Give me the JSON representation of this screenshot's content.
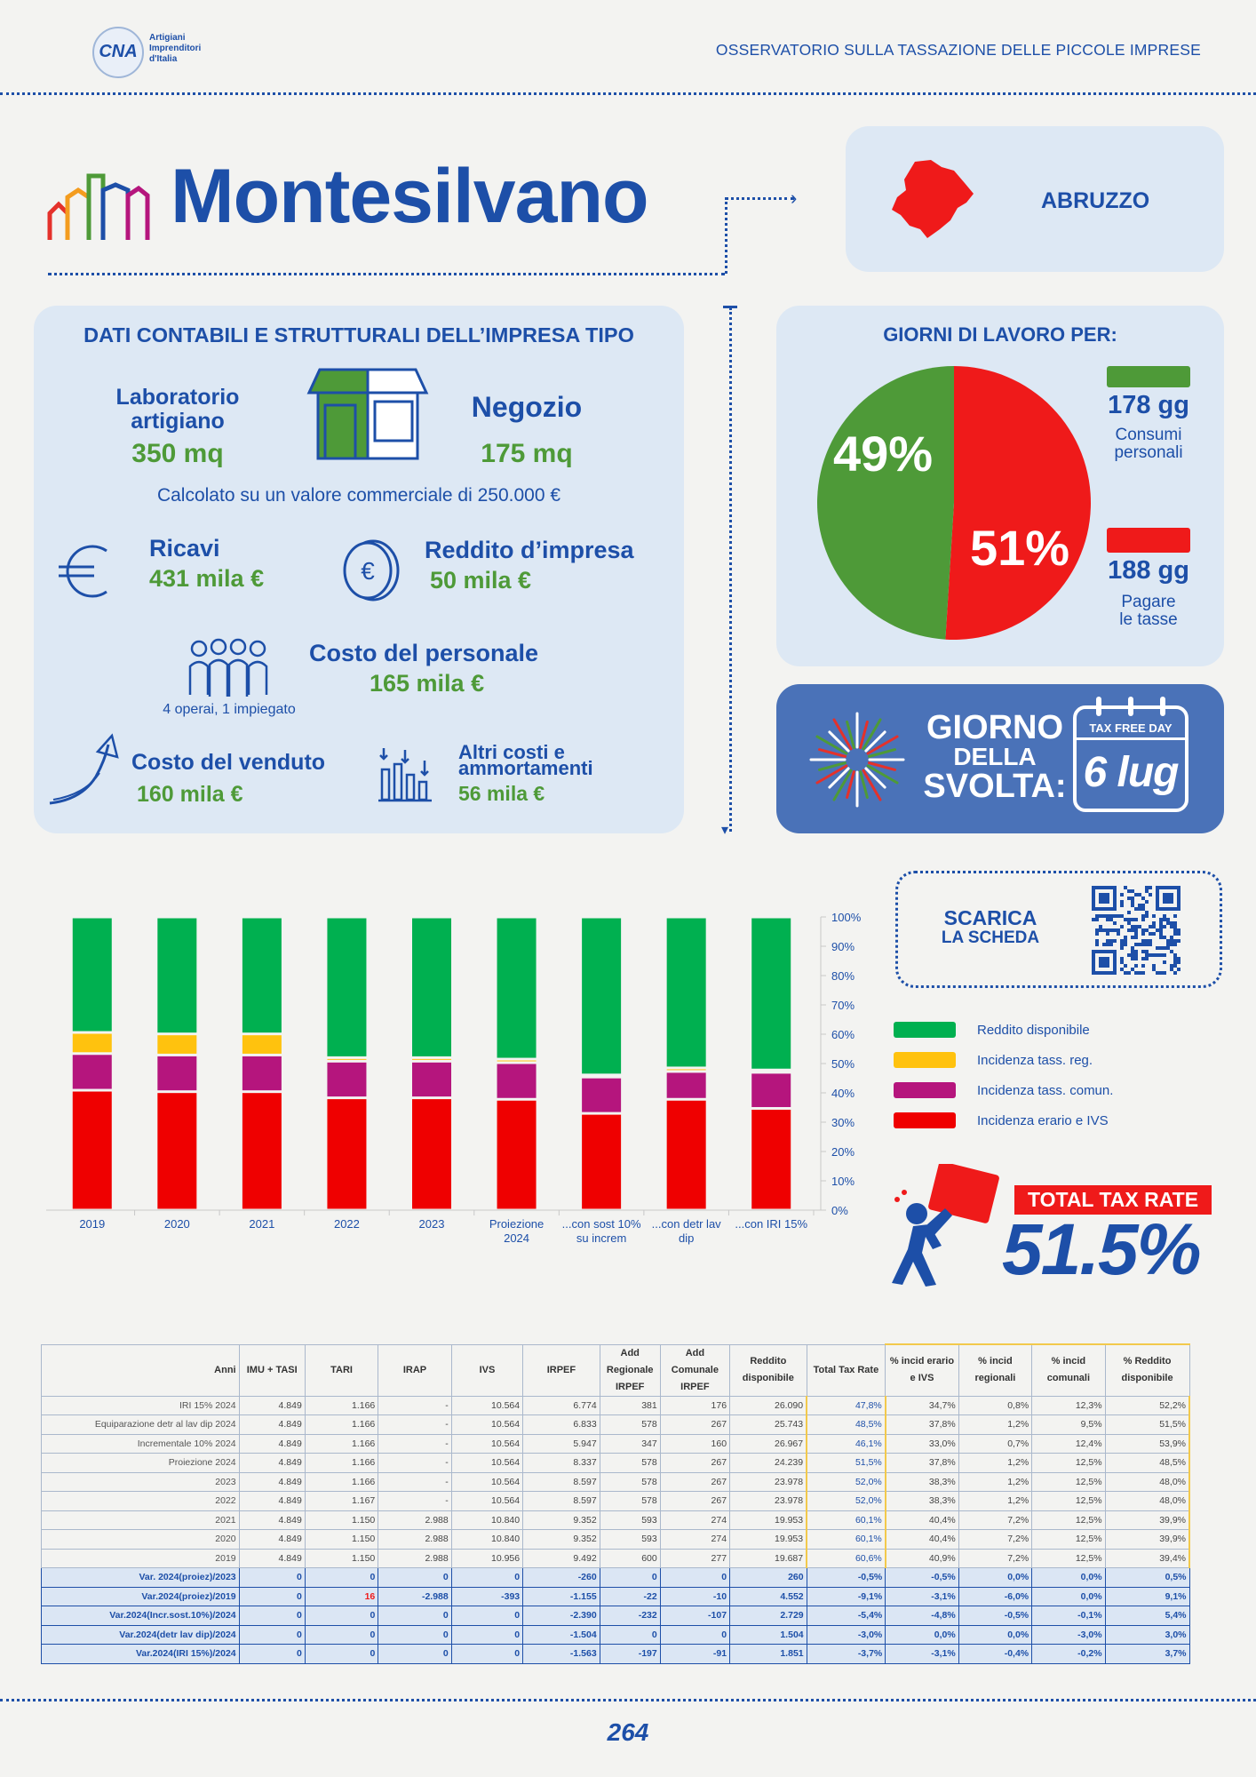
{
  "header": {
    "logo_text": "CNA",
    "logo_sub": [
      "Artigiani",
      "Imprenditori",
      "d'Italia"
    ],
    "title": "OSSERVATORIO SULLA TASSAZIONE DELLE PICCOLE IMPRESE"
  },
  "city": "Montesilvano",
  "region": "ABRUZZO",
  "impresa": {
    "title": "DATI CONTABILI E STRUTTURALI DELL’IMPRESA TIPO",
    "lab_label_1": "Laboratorio",
    "lab_label_2": "artigiano",
    "lab_value": "350 mq",
    "negozio_label": "Negozio",
    "negozio_value": "175 mq",
    "valore_note": "Calcolato su un valore commerciale di 250.000 €",
    "ricavi_label": "Ricavi",
    "ricavi_value": "431 mila €",
    "reddito_label": "Reddito d’impresa",
    "reddito_value": "50 mila €",
    "personale_label": "Costo del personale",
    "personale_value": "165 mila €",
    "personale_note": "4 operai, 1 impiegato",
    "venduto_label": "Costo del venduto",
    "venduto_value": "160 mila €",
    "altri_label_1": "Altri costi e",
    "altri_label_2": "ammortamenti",
    "altri_value": "56 mila €"
  },
  "giorni": {
    "title": "GIORNI DI LAVORO PER:",
    "green_pct": "49%",
    "red_pct": "51%",
    "green_days": "178 gg",
    "green_desc_1": "Consumi",
    "green_desc_2": "personali",
    "red_days": "188 gg",
    "red_desc_1": "Pagare",
    "red_desc_2": "le tasse",
    "green_share": 0.49,
    "colors": {
      "green": "#4e9a38",
      "red": "#ef1a1a"
    }
  },
  "svolta": {
    "line1": "GIORNO",
    "line2": "DELLA",
    "line3": "SVOLTA:",
    "cal_header": "TAX FREE DAY",
    "cal_date": "6 lug"
  },
  "scarica": {
    "line1": "SCARICA",
    "line2": "LA SCHEDA"
  },
  "chart_data": {
    "type": "bar",
    "stacked": true,
    "categories": [
      "2019",
      "2020",
      "2021",
      "2022",
      "2023",
      "Proiezione 2024",
      "...con sost 10% su increm",
      "...con detr lav dip",
      "...con IRI 15%"
    ],
    "category_lines": [
      [
        "2019"
      ],
      [
        "2020"
      ],
      [
        "2021"
      ],
      [
        "2022"
      ],
      [
        "2023"
      ],
      [
        "Proiezione",
        "2024"
      ],
      [
        "...con sost 10%",
        "su increm"
      ],
      [
        "...con detr lav",
        "dip"
      ],
      [
        "...con IRI 15%"
      ]
    ],
    "series": [
      {
        "name": "Incidenza erario e IVS",
        "color": "#ef0000",
        "values": [
          40.9,
          40.4,
          40.4,
          38.3,
          38.3,
          37.8,
          33.0,
          37.8,
          34.7
        ]
      },
      {
        "name": "Incidenza tass. comun.",
        "color": "#b5157d",
        "values": [
          12.5,
          12.5,
          12.5,
          12.5,
          12.5,
          12.5,
          12.4,
          9.5,
          12.3
        ]
      },
      {
        "name": "Incidenza tass. reg.",
        "color": "#ffc20e",
        "values": [
          7.2,
          7.2,
          7.2,
          1.2,
          1.2,
          1.2,
          0.7,
          1.2,
          0.8
        ]
      },
      {
        "name": "Reddito disponibile",
        "color": "#00b050",
        "values": [
          39.4,
          39.9,
          39.9,
          48.0,
          48.0,
          48.5,
          53.9,
          51.5,
          52.2
        ]
      }
    ],
    "legend_order": [
      "Reddito disponibile",
      "Incidenza tass. reg.",
      "Incidenza tass. comun.",
      "Incidenza erario e IVS"
    ],
    "yticks": [
      "100%",
      "90%",
      "80%",
      "70%",
      "60%",
      "50%",
      "40%",
      "30%",
      "20%",
      "10%",
      "0%"
    ],
    "ylim": [
      0,
      100
    ]
  },
  "total_tax": {
    "label": "TOTAL TAX RATE",
    "value": "51.5%"
  },
  "table": {
    "headers": [
      "Anni",
      "IMU + TASI",
      "TARI",
      "IRAP",
      "IVS",
      "IRPEF",
      "Add Regionale IRPEF",
      "Add Comunale IRPEF",
      "Reddito disponibile",
      "Total Tax Rate",
      "% incid erario e IVS",
      "% incid regionali",
      "% incid comunali",
      "% Reddito disponibile"
    ],
    "rows": [
      [
        "IRI 15% 2024",
        "4.849",
        "1.166",
        "-",
        "10.564",
        "6.774",
        "381",
        "176",
        "26.090",
        "47,8%",
        "34,7%",
        "0,8%",
        "12,3%",
        "52,2%"
      ],
      [
        "Equiparazione detr al lav dip 2024",
        "4.849",
        "1.166",
        "-",
        "10.564",
        "6.833",
        "578",
        "267",
        "25.743",
        "48,5%",
        "37,8%",
        "1,2%",
        "9,5%",
        "51,5%"
      ],
      [
        "Incrementale 10% 2024",
        "4.849",
        "1.166",
        "-",
        "10.564",
        "5.947",
        "347",
        "160",
        "26.967",
        "46,1%",
        "33,0%",
        "0,7%",
        "12,4%",
        "53,9%"
      ],
      [
        "Proiezione 2024",
        "4.849",
        "1.166",
        "-",
        "10.564",
        "8.337",
        "578",
        "267",
        "24.239",
        "51,5%",
        "37,8%",
        "1,2%",
        "12,5%",
        "48,5%"
      ],
      [
        "2023",
        "4.849",
        "1.166",
        "-",
        "10.564",
        "8.597",
        "578",
        "267",
        "23.978",
        "52,0%",
        "38,3%",
        "1,2%",
        "12,5%",
        "48,0%"
      ],
      [
        "2022",
        "4.849",
        "1.167",
        "-",
        "10.564",
        "8.597",
        "578",
        "267",
        "23.978",
        "52,0%",
        "38,3%",
        "1,2%",
        "12,5%",
        "48,0%"
      ],
      [
        "2021",
        "4.849",
        "1.150",
        "2.988",
        "10.840",
        "9.352",
        "593",
        "274",
        "19.953",
        "60,1%",
        "40,4%",
        "7,2%",
        "12,5%",
        "39,9%"
      ],
      [
        "2020",
        "4.849",
        "1.150",
        "2.988",
        "10.840",
        "9.352",
        "593",
        "274",
        "19.953",
        "60,1%",
        "40,4%",
        "7,2%",
        "12,5%",
        "39,9%"
      ],
      [
        "2019",
        "4.849",
        "1.150",
        "2.988",
        "10.956",
        "9.492",
        "600",
        "277",
        "19.687",
        "60,6%",
        "40,9%",
        "7,2%",
        "12,5%",
        "39,4%"
      ]
    ],
    "var_rows": [
      [
        "Var. 2024(proiez)/2023",
        "0",
        "0",
        "0",
        "0",
        "-260",
        "0",
        "0",
        "260",
        "-0,5%",
        "-0,5%",
        "0,0%",
        "0,0%",
        "0,5%"
      ],
      [
        "Var.2024(proiez)/2019",
        "0",
        "16",
        "-2.988",
        "-393",
        "-1.155",
        "-22",
        "-10",
        "4.552",
        "-9,1%",
        "-3,1%",
        "-6,0%",
        "0,0%",
        "9,1%"
      ],
      [
        "Var.2024(Incr.sost.10%)/2024",
        "0",
        "0",
        "0",
        "0",
        "-2.390",
        "-232",
        "-107",
        "2.729",
        "-5,4%",
        "-4,8%",
        "-0,5%",
        "-0,1%",
        "5,4%"
      ],
      [
        "Var.2024(detr lav dip)/2024",
        "0",
        "0",
        "0",
        "0",
        "-1.504",
        "0",
        "0",
        "1.504",
        "-3,0%",
        "0,0%",
        "0,0%",
        "-3,0%",
        "3,0%"
      ],
      [
        "Var.2024(IRI 15%)/2024",
        "0",
        "0",
        "0",
        "0",
        "-1.563",
        "-197",
        "-91",
        "1.851",
        "-3,7%",
        "-3,1%",
        "-0,4%",
        "-0,2%",
        "3,7%"
      ]
    ]
  },
  "page_number": "264"
}
